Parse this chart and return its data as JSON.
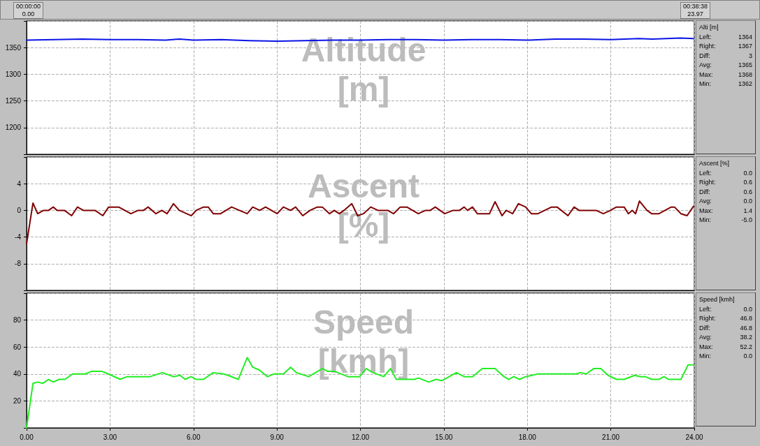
{
  "chart_data": [
    {
      "type": "line",
      "title": "Altitude [m]",
      "x": [
        0,
        1,
        2,
        3,
        4,
        5,
        5.5,
        6,
        7,
        8,
        9,
        10,
        11,
        12,
        13,
        14,
        15,
        16,
        17,
        18,
        19,
        20,
        21,
        22,
        22.5,
        23,
        23.5,
        23.97
      ],
      "series": [
        {
          "color": "#0a14e6",
          "values": [
            1364,
            1365,
            1366,
            1365,
            1365,
            1364,
            1366,
            1364,
            1365,
            1363,
            1362,
            1363,
            1364,
            1364,
            1365,
            1365,
            1364,
            1365,
            1365,
            1364,
            1366,
            1366,
            1365,
            1367,
            1366,
            1367,
            1368,
            1367
          ]
        }
      ],
      "xlim": [
        0,
        24
      ],
      "xticks": [
        0,
        3,
        6,
        9,
        12,
        15,
        18,
        21,
        24
      ],
      "ylim": [
        1150,
        1400
      ],
      "yticks": [
        1200,
        1250,
        1300,
        1350
      ],
      "grid": true,
      "marker": "none",
      "line_style": "solid",
      "tick_labels": "y",
      "annotations": [
        "00:00:00",
        "0.00",
        "00:38:38",
        "23.97",
        "Alti [m]",
        "Left:",
        "1364",
        "Right:",
        "1367",
        "Diff:",
        "3",
        "Avg:",
        "1365",
        "Max:",
        "1368",
        "Min:",
        "1362"
      ]
    },
    {
      "type": "line",
      "title": "Ascent [%]",
      "x": [
        0,
        0.23,
        0.4,
        0.61,
        0.79,
        0.96,
        1.1,
        1.36,
        1.62,
        1.83,
        2.04,
        2.46,
        2.74,
        2.95,
        3.31,
        3.75,
        4.01,
        4.2,
        4.37,
        4.65,
        4.86,
        5.05,
        5.28,
        5.49,
        5.92,
        6.1,
        6.36,
        6.53,
        6.71,
        6.97,
        7.37,
        7.93,
        8.13,
        8.38,
        8.59,
        9.01,
        9.23,
        9.49,
        9.67,
        9.93,
        10.19,
        10.45,
        10.63,
        10.89,
        11.06,
        11.24,
        11.41,
        11.69,
        11.9,
        12.11,
        12.37,
        12.63,
        12.98,
        13.19,
        13.43,
        13.67,
        14.08,
        14.34,
        14.51,
        14.69,
        15.03,
        15.33,
        15.56,
        15.73,
        15.85,
        16.03,
        16.2,
        16.64,
        16.84,
        17.09,
        17.24,
        17.47,
        17.68,
        17.94,
        18.14,
        18.38,
        18.87,
        19.07,
        19.46,
        19.68,
        19.86,
        20.47,
        20.73,
        20.99,
        21.2,
        21.48,
        21.63,
        21.77,
        21.89,
        22.03,
        22.3,
        22.47,
        22.73,
        23.17,
        23.29,
        23.52,
        23.74,
        23.97
      ],
      "series": [
        {
          "color": "#800000",
          "values": [
            -5.0,
            1.1,
            -0.5,
            0,
            0,
            0.5,
            0,
            0,
            -0.8,
            0.5,
            0,
            0,
            -0.8,
            0.5,
            0.5,
            -0.5,
            0,
            0,
            0.5,
            -0.5,
            0,
            -0.5,
            1.0,
            0,
            -0.8,
            0,
            0.5,
            0.5,
            -0.5,
            -0.5,
            0.5,
            -0.5,
            0.5,
            0,
            0.5,
            -0.5,
            0.5,
            0,
            0.5,
            -0.8,
            0,
            0.5,
            0.5,
            -0.5,
            0,
            -0.5,
            0,
            1.0,
            -0.8,
            -0.5,
            0.5,
            0,
            0,
            -0.5,
            0.5,
            0.5,
            -0.5,
            0,
            0,
            0.5,
            -0.5,
            0,
            0,
            0.5,
            0,
            0.5,
            -0.5,
            -0.5,
            1.3,
            -0.8,
            0,
            -0.5,
            1.0,
            0.5,
            -0.5,
            -0.5,
            0.5,
            0.5,
            -0.8,
            0.5,
            0,
            0,
            -0.5,
            0,
            0.5,
            0.5,
            -0.5,
            0,
            -0.5,
            1.4,
            0,
            -0.5,
            -0.5,
            0.5,
            0.5,
            -0.5,
            -0.8,
            0.6
          ]
        }
      ],
      "xlim": [
        0,
        24
      ],
      "xticks": [
        0,
        3,
        6,
        9,
        12,
        15,
        18,
        21,
        24
      ],
      "ylim": [
        -12,
        8
      ],
      "yticks": [
        -8,
        -4,
        0,
        4
      ],
      "grid": true,
      "marker": "none",
      "line_style": "solid",
      "tick_labels": "y",
      "annotations": [
        "Ascent [%]",
        "Left:",
        "0.0",
        "Right:",
        "0.6",
        "Diff:",
        "0.6",
        "Avg:",
        "0.0",
        "Max:",
        "1.4",
        "Min:",
        "-5.0"
      ]
    },
    {
      "type": "line",
      "title": "Speed [kmh]",
      "x": [
        0,
        0.23,
        0.4,
        0.58,
        0.79,
        0.96,
        1.17,
        1.38,
        1.66,
        2.11,
        2.35,
        2.7,
        3.05,
        3.36,
        3.61,
        4.44,
        4.88,
        5.28,
        5.52,
        5.7,
        5.91,
        6.1,
        6.36,
        6.71,
        7.07,
        7.24,
        7.61,
        7.93,
        8.13,
        8.36,
        8.66,
        8.89,
        9.23,
        9.49,
        9.7,
        10.14,
        10.63,
        10.82,
        11.06,
        11.55,
        11.97,
        12.21,
        12.45,
        12.84,
        13.08,
        13.29,
        13.94,
        14.09,
        14.46,
        14.72,
        14.93,
        15.45,
        15.73,
        16.03,
        16.38,
        16.84,
        17.16,
        17.33,
        17.51,
        17.72,
        17.94,
        18.38,
        19.74,
        19.91,
        20.12,
        20.38,
        20.64,
        20.9,
        21.2,
        21.48,
        21.86,
        22.07,
        22.24,
        22.47,
        22.73,
        22.91,
        23.08,
        23.52,
        23.78,
        23.97
      ],
      "series": [
        {
          "color": "#22ee22",
          "values": [
            0,
            33,
            34,
            33,
            36,
            34,
            36,
            36,
            40,
            40,
            42,
            42,
            39,
            36,
            38,
            38,
            41,
            38,
            39,
            36,
            38,
            36,
            36,
            41,
            40,
            39,
            36,
            52.2,
            45,
            43,
            38,
            40,
            40,
            45,
            41,
            38,
            44,
            42,
            42,
            38,
            38,
            44,
            41,
            38,
            44,
            36,
            36,
            37,
            34,
            36,
            35,
            41,
            38,
            38,
            44,
            44,
            38,
            36,
            38,
            36,
            38,
            40,
            40,
            41,
            40,
            44,
            44,
            39,
            36,
            36,
            39,
            38,
            38,
            36,
            36,
            38,
            36,
            36,
            46.8,
            46.8
          ]
        }
      ],
      "xlim": [
        0,
        24
      ],
      "xticks": [
        {
          "value": 0,
          "label": "0.00"
        },
        {
          "value": 3,
          "label": "3.00"
        },
        {
          "value": 6,
          "label": "6.00"
        },
        {
          "value": 9,
          "label": "9.00"
        },
        {
          "value": 12,
          "label": "12.00"
        },
        {
          "value": 15,
          "label": "15.00"
        },
        {
          "value": 18,
          "label": "18.00"
        },
        {
          "value": 21,
          "label": "21.00"
        },
        {
          "value": 24,
          "label": "24.00"
        }
      ],
      "ylim": [
        0,
        100
      ],
      "yticks": [
        20,
        40,
        60,
        80
      ],
      "grid": true,
      "marker": "none",
      "line_style": "solid",
      "annotations": [
        "Speed [kmh]",
        "Left:",
        "0.0",
        "Right:",
        "46.8",
        "Diff:",
        "46.8",
        "Avg:",
        "38.2",
        "Max:",
        "52.2",
        "Min:",
        "0.0"
      ]
    }
  ]
}
